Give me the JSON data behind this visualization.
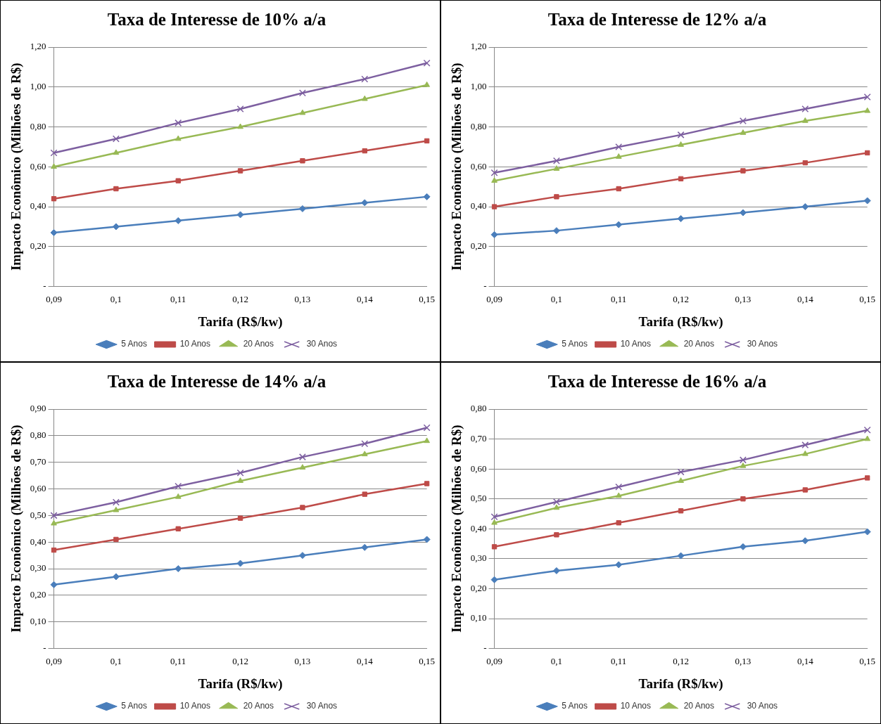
{
  "chart_data": [
    {
      "type": "line",
      "title": "Taxa de Interesse de 10% a/a",
      "xlabel": "Tarifa (R$/kw)",
      "ylabel": "Impacto Econômico (Milhões de R$)",
      "categories": [
        "0,09",
        "0,1",
        "0,11",
        "0,12",
        "0,13",
        "0,14",
        "0,15"
      ],
      "series": [
        {
          "name": "5 Anos",
          "color": "#4a7ebb",
          "marker": "diamond",
          "values": [
            0.27,
            0.3,
            0.33,
            0.36,
            0.39,
            0.42,
            0.45
          ]
        },
        {
          "name": "10 Anos",
          "color": "#be4b48",
          "marker": "square",
          "values": [
            0.44,
            0.49,
            0.53,
            0.58,
            0.63,
            0.68,
            0.73
          ]
        },
        {
          "name": "20 Anos",
          "color": "#98b954",
          "marker": "triangle",
          "values": [
            0.6,
            0.67,
            0.74,
            0.8,
            0.87,
            0.94,
            1.01
          ]
        },
        {
          "name": "30 Anos",
          "color": "#7d5fa0",
          "marker": "cross",
          "values": [
            0.67,
            0.74,
            0.82,
            0.89,
            0.97,
            1.04,
            1.12
          ]
        }
      ],
      "ylim": [
        0,
        1.2
      ],
      "yticks": [
        {
          "value": 0,
          "label": "-"
        },
        {
          "value": 0.2,
          "label": "0,20"
        },
        {
          "value": 0.4,
          "label": "0,40"
        },
        {
          "value": 0.6,
          "label": "0,60"
        },
        {
          "value": 0.8,
          "label": "0,80"
        },
        {
          "value": 1.0,
          "label": "1,00"
        },
        {
          "value": 1.2,
          "label": "1,20"
        }
      ],
      "grid": "y",
      "legend": "bottom",
      "line_style": "solid"
    },
    {
      "type": "line",
      "title": "Taxa de Interesse de 12% a/a",
      "xlabel": "Tarifa (R$/kw)",
      "ylabel": "Impacto Econômico (Milhões de R$)",
      "categories": [
        "0,09",
        "0,1",
        "0,11",
        "0,12",
        "0,13",
        "0,14",
        "0,15"
      ],
      "series": [
        {
          "name": "5 Anos",
          "color": "#4a7ebb",
          "marker": "diamond",
          "values": [
            0.26,
            0.28,
            0.31,
            0.34,
            0.37,
            0.4,
            0.43
          ]
        },
        {
          "name": "10 Anos",
          "color": "#be4b48",
          "marker": "square",
          "values": [
            0.4,
            0.45,
            0.49,
            0.54,
            0.58,
            0.62,
            0.67
          ]
        },
        {
          "name": "20 Anos",
          "color": "#98b954",
          "marker": "triangle",
          "values": [
            0.53,
            0.59,
            0.65,
            0.71,
            0.77,
            0.83,
            0.88
          ]
        },
        {
          "name": "30 Anos",
          "color": "#7d5fa0",
          "marker": "cross",
          "values": [
            0.57,
            0.63,
            0.7,
            0.76,
            0.83,
            0.89,
            0.95
          ]
        }
      ],
      "ylim": [
        0,
        1.2
      ],
      "yticks": [
        {
          "value": 0,
          "label": "-"
        },
        {
          "value": 0.2,
          "label": "0,20"
        },
        {
          "value": 0.4,
          "label": "0,40"
        },
        {
          "value": 0.6,
          "label": "0,60"
        },
        {
          "value": 0.8,
          "label": "0,80"
        },
        {
          "value": 1.0,
          "label": "1,00"
        },
        {
          "value": 1.2,
          "label": "1,20"
        }
      ],
      "grid": "y",
      "legend": "bottom",
      "line_style": "solid"
    },
    {
      "type": "line",
      "title": "Taxa de Interesse de 14% a/a",
      "xlabel": "Tarifa (R$/kw)",
      "ylabel": "Impacto Econômico (Milhões de R$)",
      "categories": [
        "0,09",
        "0,1",
        "0,11",
        "0,12",
        "0,13",
        "0,14",
        "0,15"
      ],
      "series": [
        {
          "name": "5 Anos",
          "color": "#4a7ebb",
          "marker": "diamond",
          "values": [
            0.24,
            0.27,
            0.3,
            0.32,
            0.35,
            0.38,
            0.41
          ]
        },
        {
          "name": "10 Anos",
          "color": "#be4b48",
          "marker": "square",
          "values": [
            0.37,
            0.41,
            0.45,
            0.49,
            0.53,
            0.58,
            0.62
          ]
        },
        {
          "name": "20 Anos",
          "color": "#98b954",
          "marker": "triangle",
          "values": [
            0.47,
            0.52,
            0.57,
            0.63,
            0.68,
            0.73,
            0.78
          ]
        },
        {
          "name": "30 Anos",
          "color": "#7d5fa0",
          "marker": "cross",
          "values": [
            0.5,
            0.55,
            0.61,
            0.66,
            0.72,
            0.77,
            0.83
          ]
        }
      ],
      "ylim": [
        0,
        0.9
      ],
      "yticks": [
        {
          "value": 0,
          "label": "-"
        },
        {
          "value": 0.1,
          "label": "0,10"
        },
        {
          "value": 0.2,
          "label": "0,20"
        },
        {
          "value": 0.3,
          "label": "0,30"
        },
        {
          "value": 0.4,
          "label": "0,40"
        },
        {
          "value": 0.5,
          "label": "0,50"
        },
        {
          "value": 0.6,
          "label": "0,60"
        },
        {
          "value": 0.7,
          "label": "0,70"
        },
        {
          "value": 0.8,
          "label": "0,80"
        },
        {
          "value": 0.9,
          "label": "0,90"
        }
      ],
      "grid": "y",
      "legend": "bottom",
      "line_style": "solid"
    },
    {
      "type": "line",
      "title": "Taxa de Interesse de 16% a/a",
      "xlabel": "Tarifa (R$/kw)",
      "ylabel": "Impacto Econômico (Milhões de R$)",
      "categories": [
        "0,09",
        "0,1",
        "0,11",
        "0,12",
        "0,13",
        "0,14",
        "0,15"
      ],
      "series": [
        {
          "name": "5 Anos",
          "color": "#4a7ebb",
          "marker": "diamond",
          "values": [
            0.23,
            0.26,
            0.28,
            0.31,
            0.34,
            0.36,
            0.39
          ]
        },
        {
          "name": "10 Anos",
          "color": "#be4b48",
          "marker": "square",
          "values": [
            0.34,
            0.38,
            0.42,
            0.46,
            0.5,
            0.53,
            0.57
          ]
        },
        {
          "name": "20 Anos",
          "color": "#98b954",
          "marker": "triangle",
          "values": [
            0.42,
            0.47,
            0.51,
            0.56,
            0.61,
            0.65,
            0.7
          ]
        },
        {
          "name": "30 Anos",
          "color": "#7d5fa0",
          "marker": "cross",
          "values": [
            0.44,
            0.49,
            0.54,
            0.59,
            0.63,
            0.68,
            0.73
          ]
        }
      ],
      "ylim": [
        0,
        0.8
      ],
      "yticks": [
        {
          "value": 0,
          "label": "-"
        },
        {
          "value": 0.1,
          "label": "0,10"
        },
        {
          "value": 0.2,
          "label": "0,20"
        },
        {
          "value": 0.3,
          "label": "0,30"
        },
        {
          "value": 0.4,
          "label": "0,40"
        },
        {
          "value": 0.5,
          "label": "0,50"
        },
        {
          "value": 0.6,
          "label": "0,60"
        },
        {
          "value": 0.7,
          "label": "0,70"
        },
        {
          "value": 0.8,
          "label": "0,80"
        }
      ],
      "grid": "y",
      "legend": "bottom",
      "line_style": "solid"
    }
  ]
}
